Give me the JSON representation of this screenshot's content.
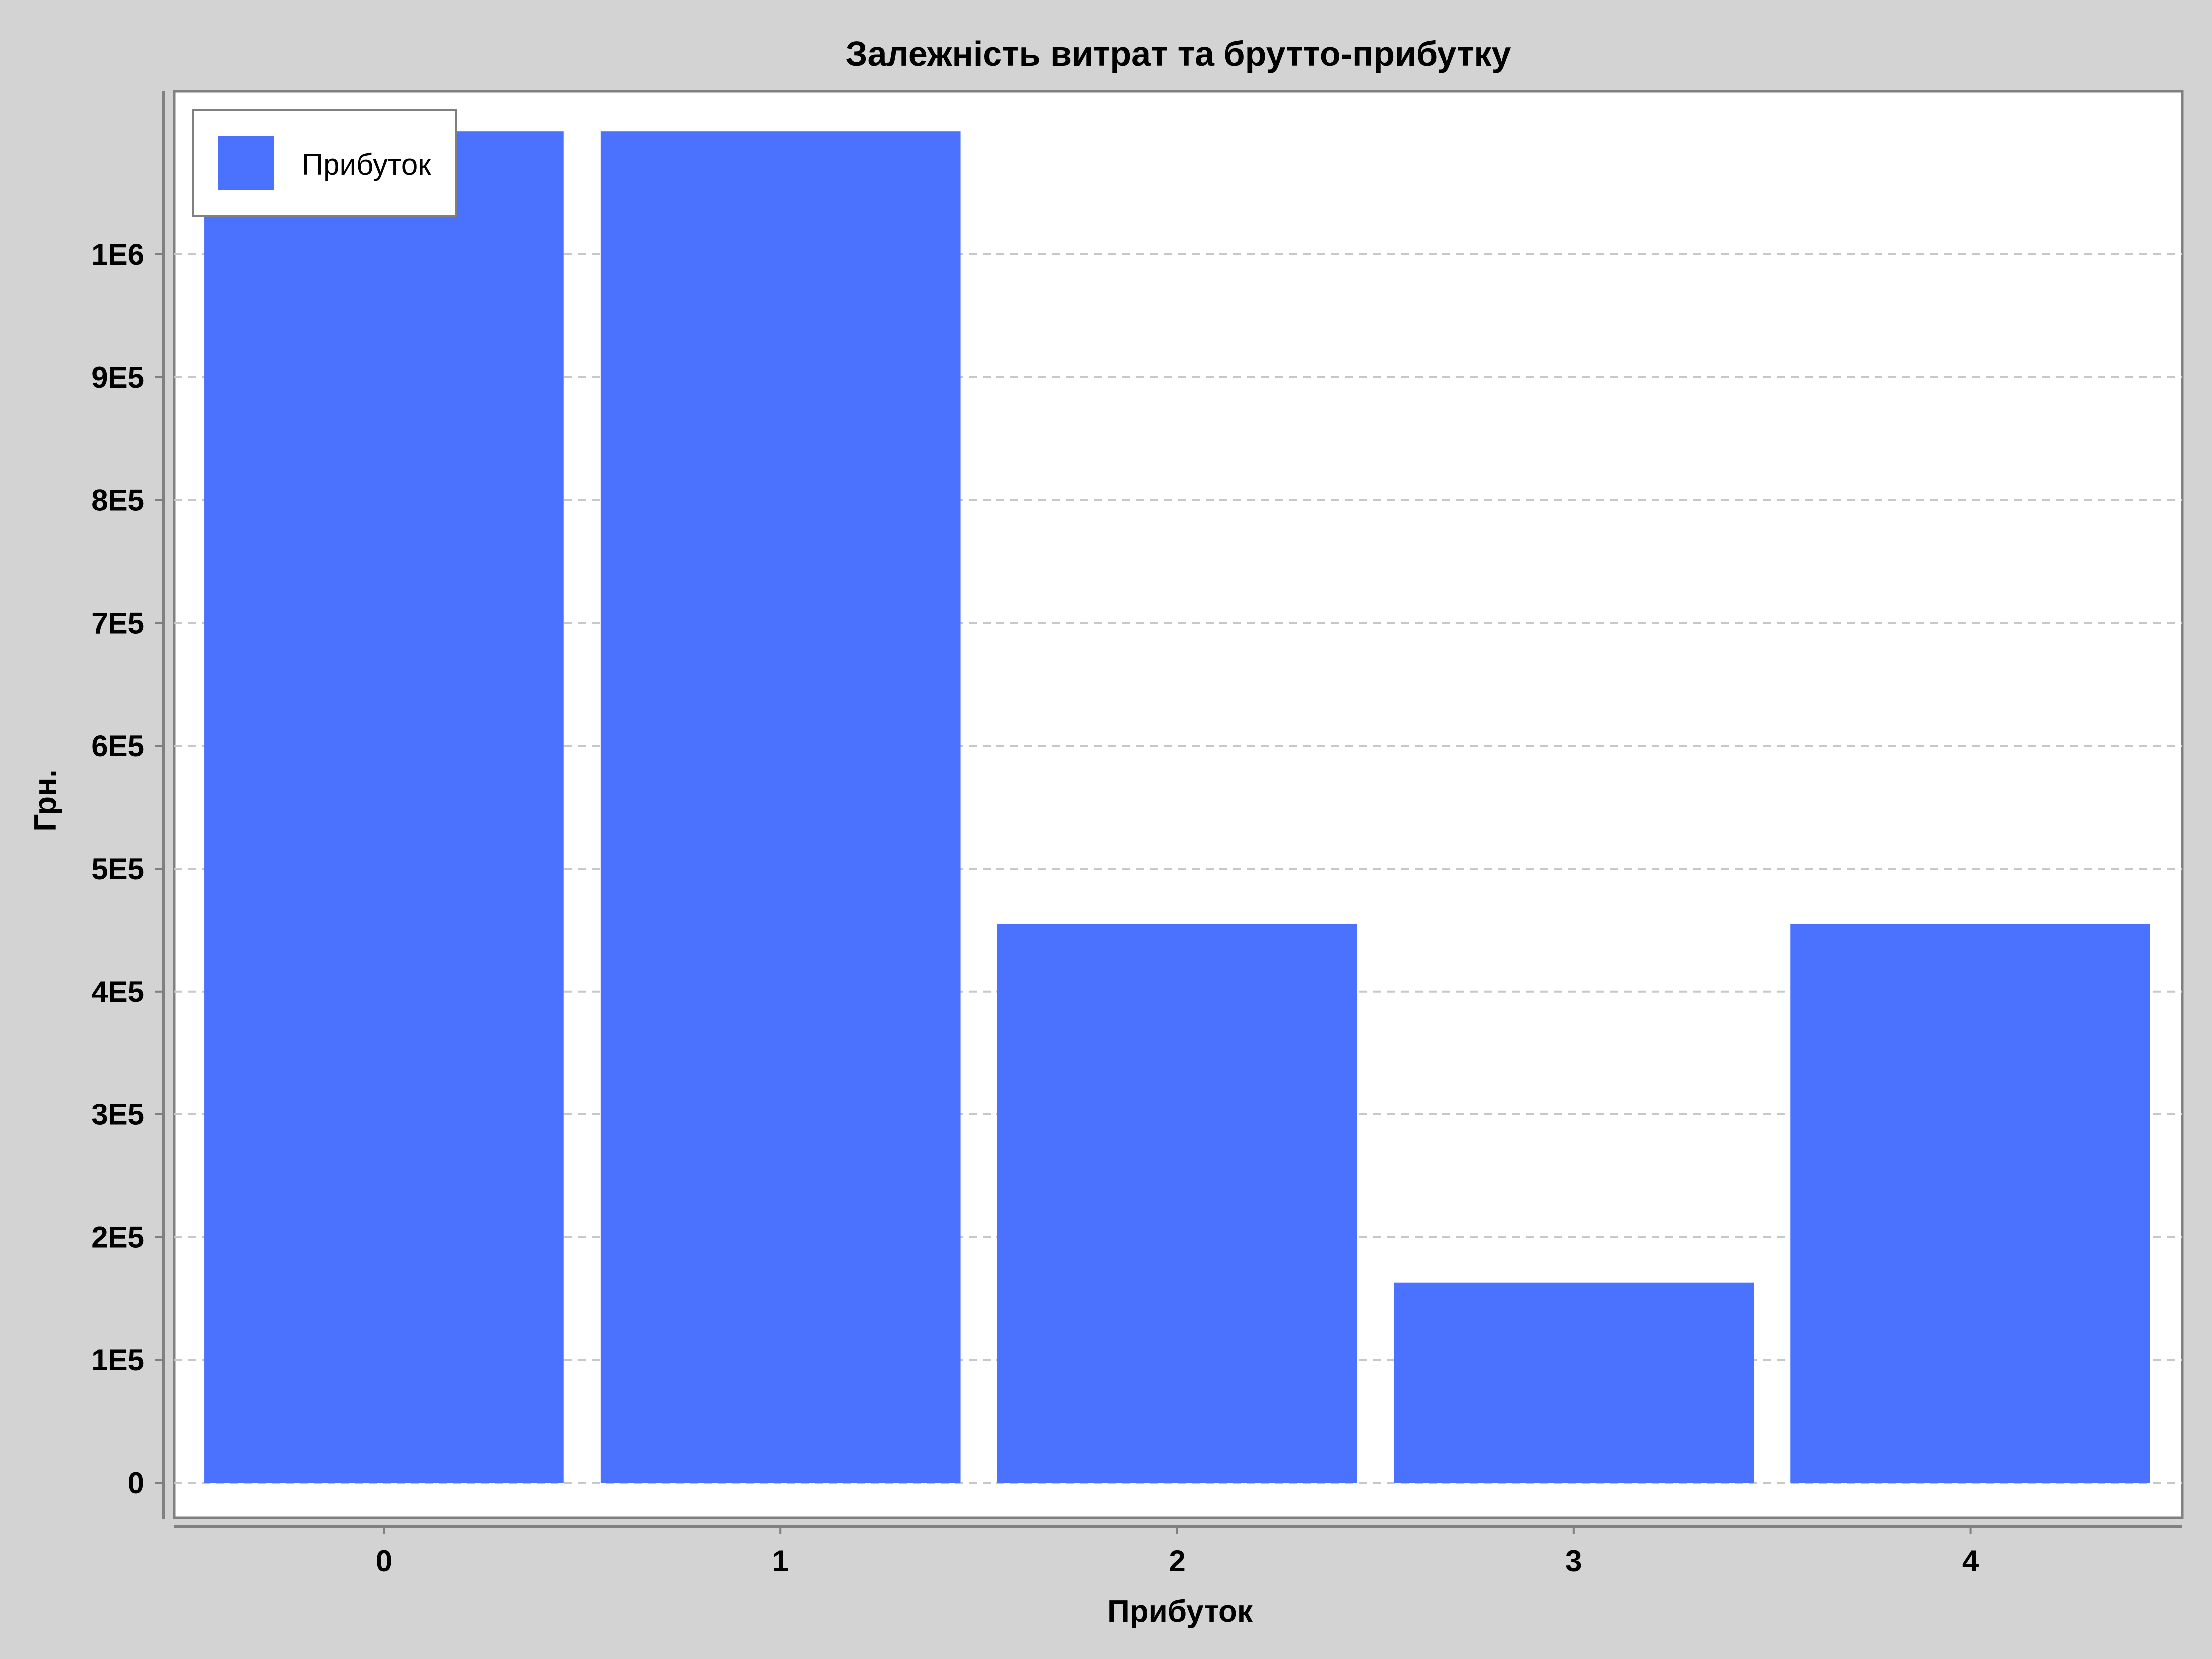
{
  "chart_data": {
    "type": "bar",
    "title": "Залежність витрат та брутто-прибутку",
    "xlabel": "Прибуток",
    "ylabel": "Грн.",
    "categories": [
      "0",
      "1",
      "2",
      "3",
      "4"
    ],
    "series": [
      {
        "name": "Прибуток",
        "color": "#4a72ff",
        "values": [
          1100000,
          1100000,
          455000,
          163000,
          455000
        ]
      }
    ],
    "yticks": [
      {
        "value": 0,
        "label": "0"
      },
      {
        "value": 100000,
        "label": "1E5"
      },
      {
        "value": 200000,
        "label": "2E5"
      },
      {
        "value": 300000,
        "label": "3E5"
      },
      {
        "value": 400000,
        "label": "4E5"
      },
      {
        "value": 500000,
        "label": "5E5"
      },
      {
        "value": 600000,
        "label": "6E5"
      },
      {
        "value": 700000,
        "label": "7E5"
      },
      {
        "value": 800000,
        "label": "8E5"
      },
      {
        "value": 900000,
        "label": "9E5"
      },
      {
        "value": 1000000,
        "label": "1E6"
      }
    ],
    "ylim": [
      0,
      1100000
    ],
    "xlim": [
      -0.5,
      4.5
    ],
    "grid": true,
    "legend_position": "top-left",
    "colors": {
      "background": "#d3d3d3",
      "plot_background": "#ffffff",
      "grid": "#c8c8c8",
      "axis": "#808080",
      "bar": "#4a72ff"
    }
  }
}
